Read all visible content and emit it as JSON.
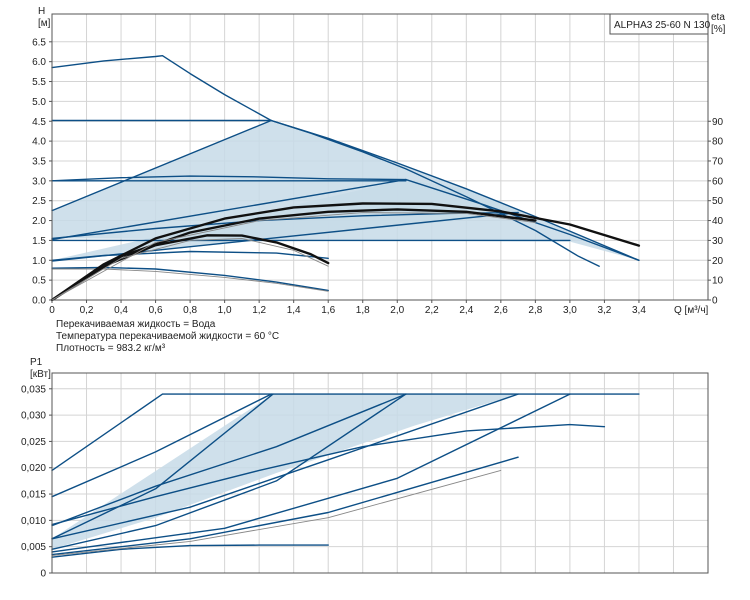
{
  "pump_model": "ALPHA3 25-60 N 130",
  "fluid_info": [
    "Перекачиваемая жидкость = Вода",
    "Температура перекачиваемой жидкости = 60 °C",
    "Плотность = 983.2 кг/м³"
  ],
  "colors": {
    "curve": "#0d4f86",
    "area_fill": "#c7dae8",
    "bold_curve": "#111111",
    "thin_curve": "#888888",
    "grid": "#d4d4d4",
    "frame": "#555555"
  },
  "chart_data": [
    {
      "id": "head",
      "type": "line",
      "title": "",
      "xlabel": "Q [м³/ч]",
      "ylabel_lines": [
        "H",
        "[м]"
      ],
      "y2label_lines": [
        "eta",
        "[%]"
      ],
      "xlim": [
        0,
        3.8
      ],
      "ylim": [
        0,
        7.2
      ],
      "y2lim": [
        0,
        144
      ],
      "grid": true,
      "xticks": [
        "0",
        "0,2",
        "0,4",
        "0,6",
        "0,8",
        "1,0",
        "1,2",
        "1,4",
        "1,6",
        "1,8",
        "2,0",
        "2,2",
        "2,4",
        "2,6",
        "2,8",
        "3,0",
        "3,2",
        "3,4"
      ],
      "yticks": [
        "0.0",
        "0.5",
        "1.0",
        "1.5",
        "2.0",
        "2.5",
        "3.0",
        "3.5",
        "4.0",
        "4.5",
        "5.0",
        "5.5",
        "6.0",
        "6.5"
      ],
      "y2ticks": [
        "0",
        "10",
        "20",
        "30",
        "40",
        "50",
        "60",
        "70",
        "80",
        "90"
      ],
      "regions": [
        [
          [
            0,
            2.25
          ],
          [
            1.27,
            4.52
          ],
          [
            1.8,
            3.75
          ],
          [
            2.4,
            2.8
          ],
          [
            2.8,
            2.1
          ],
          [
            3.4,
            1.0
          ],
          [
            3.0,
            1.47
          ],
          [
            0,
            1.55
          ]
        ],
        [
          [
            0,
            1.0
          ],
          [
            2.05,
            3.03
          ],
          [
            2.4,
            2.8
          ],
          [
            2.75,
            2.18
          ],
          [
            2.5,
            2.07
          ],
          [
            0,
            0.98
          ]
        ]
      ],
      "series": [
        {
          "style": "blue",
          "x": [
            0,
            0.3,
            0.6,
            0.64,
            0.8,
            1.0,
            1.27,
            1.5,
            1.8,
            2.05,
            2.4,
            2.8,
            3.05,
            3.17
          ],
          "y": [
            5.85,
            6.02,
            6.13,
            6.15,
            5.7,
            5.17,
            4.52,
            4.2,
            3.73,
            3.3,
            2.6,
            1.75,
            1.1,
            0.85
          ]
        },
        {
          "style": "blue",
          "x": [
            0,
            1.27
          ],
          "y": [
            4.52,
            4.52
          ]
        },
        {
          "style": "blue",
          "x": [
            0,
            1.27
          ],
          "y": [
            2.25,
            4.52
          ]
        },
        {
          "style": "blue",
          "x": [
            1.27,
            1.6,
            2.0,
            2.4,
            2.8,
            3.4
          ],
          "y": [
            4.52,
            4.07,
            3.45,
            2.8,
            2.1,
            1.0
          ]
        },
        {
          "style": "blue",
          "x": [
            0,
            2.05
          ],
          "y": [
            3.0,
            3.0
          ]
        },
        {
          "style": "blue",
          "x": [
            0,
            2.05
          ],
          "y": [
            1.52,
            3.03
          ]
        },
        {
          "style": "blue",
          "x": [
            0,
            0.4,
            0.8,
            1.2,
            1.6,
            2.05
          ],
          "y": [
            3.0,
            3.08,
            3.12,
            3.1,
            3.05,
            3.03
          ]
        },
        {
          "style": "blue",
          "x": [
            2.05,
            2.5,
            3.0,
            3.4
          ],
          "y": [
            3.03,
            2.4,
            1.65,
            1.0
          ]
        },
        {
          "style": "blue",
          "x": [
            0,
            3.0
          ],
          "y": [
            1.5,
            1.5
          ]
        },
        {
          "style": "blue",
          "x": [
            0,
            2.7
          ],
          "y": [
            0.98,
            2.2
          ]
        },
        {
          "style": "blue",
          "x": [
            0,
            0.6,
            1.2,
            1.8,
            2.3,
            2.7
          ],
          "y": [
            1.55,
            1.8,
            2.0,
            2.12,
            2.18,
            2.2
          ]
        },
        {
          "style": "blue",
          "x": [
            0,
            0.3,
            0.8,
            1.3,
            1.6
          ],
          "y": [
            1.0,
            1.12,
            1.22,
            1.18,
            1.05
          ]
        },
        {
          "style": "blue",
          "x": [
            0,
            0.3,
            0.6,
            1.0,
            1.3,
            1.6
          ],
          "y": [
            0.8,
            0.82,
            0.78,
            0.62,
            0.45,
            0.24
          ]
        },
        {
          "style": "thin",
          "x": [
            0,
            0.3,
            0.6,
            1.0,
            1.3,
            1.6
          ],
          "y": [
            0.78,
            0.78,
            0.72,
            0.57,
            0.42,
            0.22
          ]
        },
        {
          "style": "bold",
          "x": [
            0,
            0.3,
            0.6,
            1.0,
            1.4,
            1.8,
            2.2,
            2.6,
            3.0,
            3.4
          ],
          "y": [
            0,
            0.9,
            1.55,
            2.05,
            2.33,
            2.43,
            2.42,
            2.23,
            1.9,
            1.37
          ]
        },
        {
          "style": "bold",
          "x": [
            0,
            0.4,
            0.8,
            1.2,
            1.6,
            2.0,
            2.4,
            2.8
          ],
          "y": [
            0,
            1.1,
            1.7,
            2.05,
            2.22,
            2.28,
            2.22,
            2.0
          ]
        },
        {
          "style": "bold",
          "x": [
            0,
            0.3,
            0.6,
            0.9,
            1.1,
            1.3,
            1.5,
            1.6
          ],
          "y": [
            0,
            0.85,
            1.38,
            1.63,
            1.62,
            1.45,
            1.15,
            0.93
          ]
        },
        {
          "style": "thin",
          "x": [
            0,
            0.4,
            0.8,
            1.1,
            1.4,
            1.6
          ],
          "y": [
            0,
            1.05,
            1.5,
            1.55,
            1.25,
            0.85
          ]
        },
        {
          "style": "thin",
          "x": [
            0,
            0.6,
            1.2,
            1.8,
            2.4,
            2.8
          ],
          "y": [
            0,
            1.45,
            2.0,
            2.2,
            2.18,
            1.95
          ]
        }
      ]
    },
    {
      "id": "power",
      "type": "line",
      "title": "",
      "xlabel": "",
      "ylabel_lines": [
        "P1",
        "[кВт]"
      ],
      "xlim": [
        0,
        3.8
      ],
      "ylim": [
        0,
        0.038
      ],
      "grid": true,
      "yticks": [
        "0",
        "0,005",
        "0,010",
        "0,015",
        "0,020",
        "0,025",
        "0,030",
        "0,035"
      ],
      "regions": [
        [
          [
            0,
            0.0065
          ],
          [
            1.28,
            0.034
          ],
          [
            2.7,
            0.034
          ],
          [
            2.1,
            0.028
          ],
          [
            1.3,
            0.019
          ],
          [
            0.6,
            0.0105
          ],
          [
            0,
            0.0045
          ]
        ]
      ],
      "series": [
        {
          "style": "blue",
          "x": [
            0,
            0.64,
            3.4
          ],
          "y": [
            0.0195,
            0.034,
            0.034
          ]
        },
        {
          "style": "blue",
          "x": [
            0,
            0.6,
            1.27
          ],
          "y": [
            0.0145,
            0.023,
            0.034
          ]
        },
        {
          "style": "blue",
          "x": [
            0,
            0.6,
            1.28
          ],
          "y": [
            0.0065,
            0.016,
            0.034
          ]
        },
        {
          "style": "blue",
          "x": [
            0,
            0.6,
            1.3,
            2.05
          ],
          "y": [
            0.009,
            0.0165,
            0.024,
            0.034
          ]
        },
        {
          "style": "blue",
          "x": [
            0,
            0.6,
            1.3,
            2.05
          ],
          "y": [
            0.0045,
            0.009,
            0.0175,
            0.034
          ]
        },
        {
          "style": "blue",
          "x": [
            0,
            0.8,
            1.6,
            2.7
          ],
          "y": [
            0.0065,
            0.0125,
            0.0215,
            0.034
          ]
        },
        {
          "style": "blue",
          "x": [
            0,
            1.0,
            2.0,
            3.0
          ],
          "y": [
            0.004,
            0.0085,
            0.018,
            0.034
          ]
        },
        {
          "style": "blue",
          "x": [
            0,
            0.6,
            1.2,
            1.8,
            2.4,
            3.0,
            3.2
          ],
          "y": [
            0.0092,
            0.0145,
            0.0195,
            0.024,
            0.027,
            0.0282,
            0.0278
          ]
        },
        {
          "style": "blue",
          "x": [
            0,
            0.8,
            1.6,
            2.7
          ],
          "y": [
            0.0035,
            0.0065,
            0.0115,
            0.022
          ]
        },
        {
          "style": "blue",
          "x": [
            0,
            0.4,
            0.8,
            1.2,
            1.6
          ],
          "y": [
            0.003,
            0.0045,
            0.0052,
            0.0053,
            0.0053
          ]
        },
        {
          "style": "thin",
          "x": [
            0,
            0.8,
            1.6,
            2.6
          ],
          "y": [
            0.0033,
            0.006,
            0.0105,
            0.0195
          ]
        }
      ]
    }
  ]
}
